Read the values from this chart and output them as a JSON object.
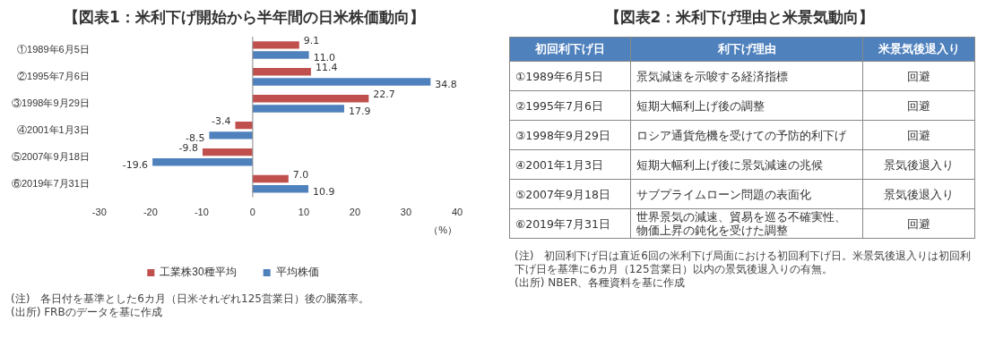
{
  "chart_data": [
    {
      "type": "bar",
      "orientation": "horizontal",
      "title": "【図表1：米利下げ開始から半年間の日米株価動向】",
      "xlabel": "（%）",
      "categories": [
        "①1989年6月5日",
        "②1995年7月6日",
        "③1998年9月29日",
        "④2001年1月3日",
        "⑤2007年9月18日",
        "⑥2019年7月31日"
      ],
      "series": [
        {
          "name": "工業株30種平均",
          "color": "#c0504d",
          "values": [
            9.1,
            11.4,
            22.7,
            -3.4,
            -9.8,
            7.0
          ],
          "value_labels": [
            "9.1",
            "11.4",
            "22.7",
            "-3.4",
            "-9.8",
            "7.0"
          ]
        },
        {
          "name": "平均株価",
          "color": "#4f81bd",
          "values": [
            11.0,
            34.8,
            17.9,
            -8.5,
            -19.6,
            10.9
          ],
          "value_labels": [
            "11.0",
            "34.8",
            "17.9",
            "-8.5",
            "-19.6",
            "10.9"
          ]
        }
      ],
      "xlim": [
        -30,
        40
      ],
      "xticks": [
        -30,
        -20,
        -10,
        0,
        10,
        20,
        30,
        40
      ],
      "grid": false,
      "legend": "bottom",
      "ref_lines": [
        {
          "axis": "x",
          "value": 0,
          "color": "#888888"
        }
      ],
      "annotations": [
        "(注)　各日付を基準とした6カ月（日米それぞれ125営業日）後の騰落率。",
        "(出所)  FRBのデータを基に作成"
      ]
    },
    {
      "type": "other",
      "title": "【図表2：米利下げ理由と米景気動向】",
      "categories": [
        "初回利下げ日",
        "利下げ理由",
        "米景気後退入り"
      ],
      "y_categories": [
        "①1989年6月5日",
        "②1995年7月6日",
        "③1998年9月29日",
        "④2001年1月3日",
        "⑤2007年9月18日",
        "⑥2019年7月31日"
      ],
      "cell_labels": [
        [
          "景気減速を示唆する経済指標",
          "回避"
        ],
        [
          "短期大幅利上げ後の調整",
          "回避"
        ],
        [
          "ロシア通貨危機を受けての予防的利下げ",
          "回避"
        ],
        [
          "短期大幅利上げ後に景気減速の兆候",
          "景気後退入り"
        ],
        [
          "サブプライムローン問題の表面化",
          "景気後退入り"
        ],
        [
          "世界景気の減速、貿易を巡る不確実性、物価上昇の鈍化を受けた調整",
          "回避"
        ]
      ],
      "annotations": [
        "(注)　初回利下げ日は直近6回の米利下げ局面における初回利下げ日。米景気後退入りは初回利下げ日を基準に6カ月（125営業日）以内の景気後退入りの有無。",
        "(出所)  NBER、各種資料を基に作成"
      ]
    }
  ]
}
